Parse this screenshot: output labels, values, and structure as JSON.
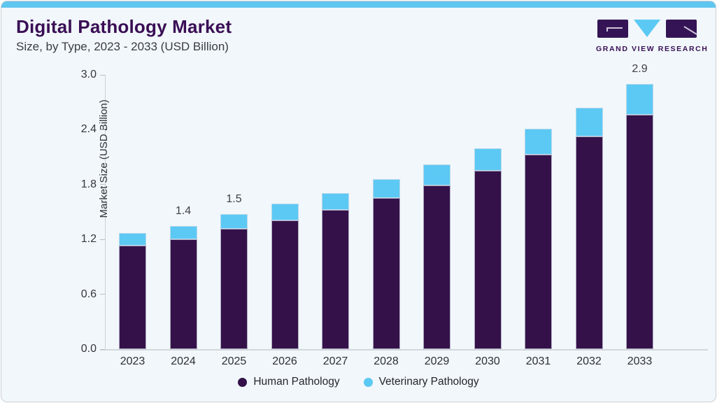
{
  "header": {
    "title": "Digital Pathology Market",
    "subtitle": "Size, by Type, 2023 - 2033 (USD Billion)"
  },
  "logo": {
    "name": "GRAND VIEW RESEARCH",
    "icon": "gvr-logo",
    "brand_purple": "#3a0e55",
    "brand_blue": "#5cc9f4"
  },
  "chart_data": {
    "type": "bar",
    "stacked": true,
    "title": "Digital Pathology Market Size, by Type, 2023 - 2033 (USD Billion)",
    "categories": [
      "2023",
      "2024",
      "2025",
      "2026",
      "2027",
      "2028",
      "2029",
      "2030",
      "2031",
      "2032",
      "2033"
    ],
    "series": [
      {
        "name": "Human Pathology",
        "color": "#341249",
        "values": [
          1.13,
          1.2,
          1.32,
          1.41,
          1.52,
          1.65,
          1.79,
          1.95,
          2.13,
          2.33,
          2.56
        ]
      },
      {
        "name": "Veterinary Pathology",
        "color": "#5cc9f4",
        "values": [
          0.14,
          0.15,
          0.16,
          0.18,
          0.19,
          0.21,
          0.23,
          0.25,
          0.28,
          0.31,
          0.34
        ]
      }
    ],
    "bar_labels": [
      "",
      "1.4",
      "1.5",
      "",
      "",
      "",
      "",
      "",
      "",
      "",
      "2.9"
    ],
    "ylabel": "Market Size (USD Billion)",
    "xlabel": "",
    "ylim": [
      0,
      3.0
    ],
    "ytick_labels": [
      "0.0",
      "0.6",
      "1.2",
      "1.8",
      "2.4",
      "3.0"
    ],
    "grid": false,
    "legend_position": "bottom"
  },
  "colors": {
    "card_background": "#f1f7fa",
    "top_strip": "#5fc6ef",
    "axis_line": "#cbd1d6",
    "tick_text": "#36363e",
    "label_text": "#3f3f49"
  }
}
